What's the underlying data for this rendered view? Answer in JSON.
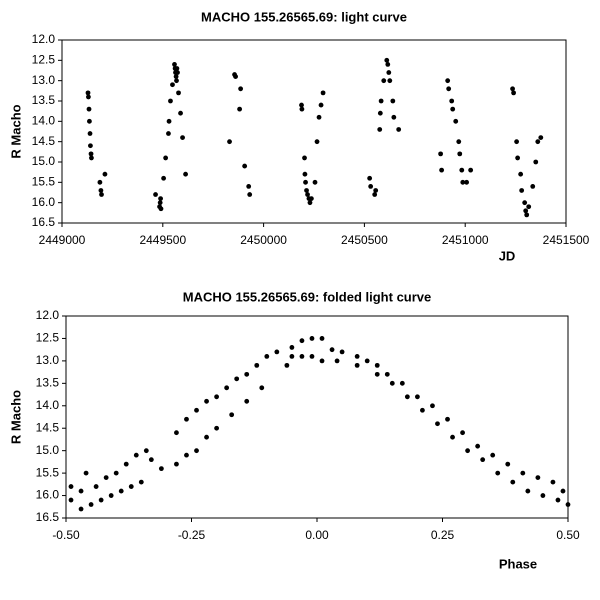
{
  "chart_data": [
    {
      "type": "scatter",
      "title": "MACHO 155.26565.69: light curve",
      "x_label": "JD",
      "y_label": "R Macho",
      "color": "#000000",
      "y_reversed": true,
      "xlim": [
        2449000,
        2451500
      ],
      "xticks": [
        2449000,
        2449500,
        2450000,
        2450500,
        2451000,
        2451500
      ],
      "ylim": [
        12.0,
        16.5
      ],
      "yticks": [
        {
          "value": 12.0,
          "label": "12.0"
        },
        12.5,
        {
          "value": 13.0,
          "label": "13.0"
        },
        13.5,
        {
          "value": 14.0,
          "label": "14.0"
        },
        14.5,
        {
          "value": 15.0,
          "label": "15.0"
        },
        15.5,
        {
          "value": 16.0,
          "label": "16.0"
        },
        16.5
      ],
      "x": [
        2449129,
        2449131,
        2449134,
        2449136,
        2449139,
        2449141,
        2449144,
        2449146,
        2449188,
        2449193,
        2449196,
        2449213,
        2449464,
        2449484,
        2449487,
        2449489,
        2449491,
        2449504,
        2449514,
        2449528,
        2449531,
        2449538,
        2449548,
        2449558,
        2449561,
        2449563,
        2449566,
        2449568,
        2449570,
        2449573,
        2449578,
        2449588,
        2449598,
        2449613,
        2449831,
        2449856,
        2449861,
        2449881,
        2449886,
        2449906,
        2449926,
        2449931,
        2450188,
        2450190,
        2450203,
        2450205,
        2450208,
        2450213,
        2450218,
        2450225,
        2450230,
        2450237,
        2450255,
        2450265,
        2450275,
        2450285,
        2450295,
        2450526,
        2450531,
        2450551,
        2450556,
        2450576,
        2450579,
        2450583,
        2450596,
        2450611,
        2450616,
        2450621,
        2450626,
        2450641,
        2450646,
        2450670,
        2450878,
        2450883,
        2450913,
        2450918,
        2450933,
        2450938,
        2450953,
        2450968,
        2450973,
        2450983,
        2450988,
        2451007,
        2451027,
        2451235,
        2451240,
        2451255,
        2451260,
        2451275,
        2451280,
        2451295,
        2451300,
        2451305,
        2451315,
        2451335,
        2451350,
        2451360,
        2451375
      ],
      "values": [
        13.3,
        13.4,
        13.7,
        14.0,
        14.3,
        14.6,
        14.8,
        14.9,
        15.5,
        15.7,
        15.8,
        15.3,
        15.8,
        16.1,
        16.0,
        15.9,
        16.15,
        15.4,
        14.9,
        14.3,
        14.0,
        13.5,
        13.1,
        12.6,
        12.7,
        12.8,
        12.9,
        13.0,
        12.7,
        12.8,
        13.3,
        13.8,
        14.4,
        15.3,
        14.5,
        12.85,
        12.9,
        13.7,
        13.2,
        15.1,
        15.6,
        15.8,
        13.6,
        13.7,
        14.9,
        15.3,
        15.5,
        15.7,
        15.8,
        15.9,
        16.0,
        15.9,
        15.5,
        14.5,
        13.9,
        13.6,
        13.3,
        15.4,
        15.6,
        15.8,
        15.7,
        14.2,
        13.8,
        13.5,
        13.0,
        12.5,
        12.6,
        12.8,
        13.0,
        13.5,
        13.9,
        14.2,
        14.8,
        15.2,
        13.0,
        13.2,
        13.5,
        13.7,
        14.0,
        14.5,
        14.8,
        15.2,
        15.5,
        15.5,
        15.2,
        13.2,
        13.3,
        14.5,
        14.9,
        15.3,
        15.7,
        16.0,
        16.2,
        16.3,
        16.1,
        15.6,
        15.0,
        14.5,
        14.4
      ]
    },
    {
      "type": "scatter",
      "title": "MACHO 155.26565.69: folded light curve",
      "x_label": "Phase",
      "y_label": "R Macho",
      "color": "#000000",
      "y_reversed": true,
      "xlim": [
        -0.5,
        0.5
      ],
      "xticks": [
        {
          "value": -0.5,
          "label": "-0.50"
        },
        {
          "value": -0.25,
          "label": "-0.25"
        },
        {
          "value": 0,
          "label": "0.00"
        },
        {
          "value": 0.25,
          "label": "0.25"
        },
        {
          "value": 0.5,
          "label": "0.50"
        }
      ],
      "ylim": [
        12.0,
        16.5
      ],
      "yticks": [
        {
          "value": 12.0,
          "label": "12.0"
        },
        12.5,
        {
          "value": 13.0,
          "label": "13.0"
        },
        13.5,
        {
          "value": 14.0,
          "label": "14.0"
        },
        14.5,
        {
          "value": 15.0,
          "label": "15.0"
        },
        15.5,
        {
          "value": 16.0,
          "label": "16.0"
        },
        16.5
      ],
      "x": [
        -0.49,
        -0.47,
        -0.46,
        -0.44,
        -0.42,
        -0.4,
        -0.38,
        -0.36,
        -0.34,
        -0.33,
        -0.28,
        -0.26,
        -0.24,
        -0.22,
        -0.2,
        -0.18,
        -0.16,
        -0.14,
        -0.12,
        -0.1,
        -0.08,
        -0.05,
        -0.03,
        -0.01,
        0.01,
        0.03,
        0.05,
        0.08,
        0.1,
        0.12,
        0.14,
        0.17,
        0.2,
        0.23,
        0.26,
        0.29,
        0.32,
        0.35,
        0.38,
        0.41,
        0.44,
        0.47,
        0.49,
        -0.49,
        -0.47,
        -0.45,
        -0.43,
        -0.41,
        -0.39,
        -0.37,
        -0.35,
        -0.31,
        -0.28,
        -0.26,
        -0.24,
        -0.22,
        -0.2,
        -0.17,
        -0.14,
        -0.11,
        -0.06,
        -0.05,
        -0.03,
        -0.01,
        0.01,
        0.04,
        0.08,
        0.12,
        0.15,
        0.18,
        0.21,
        0.24,
        0.27,
        0.3,
        0.33,
        0.36,
        0.39,
        0.42,
        0.45,
        0.48,
        0.5
      ],
      "values": [
        15.8,
        15.9,
        15.5,
        15.8,
        15.6,
        15.5,
        15.3,
        15.1,
        15.0,
        15.2,
        14.6,
        14.3,
        14.1,
        13.9,
        13.8,
        13.6,
        13.4,
        13.3,
        13.1,
        12.9,
        12.8,
        12.7,
        12.55,
        12.5,
        12.5,
        12.75,
        12.8,
        12.9,
        13.0,
        13.1,
        13.3,
        13.5,
        13.8,
        14.0,
        14.3,
        14.6,
        14.9,
        15.1,
        15.3,
        15.5,
        15.6,
        15.7,
        15.9,
        16.1,
        16.3,
        16.2,
        16.1,
        16.0,
        15.9,
        15.8,
        15.7,
        15.4,
        15.3,
        15.1,
        15.0,
        14.7,
        14.5,
        14.2,
        13.9,
        13.6,
        13.1,
        12.9,
        12.9,
        12.9,
        13.0,
        13.0,
        13.1,
        13.3,
        13.5,
        13.8,
        14.1,
        14.4,
        14.7,
        15.0,
        15.2,
        15.5,
        15.7,
        15.9,
        16.0,
        16.1,
        16.2
      ]
    }
  ]
}
